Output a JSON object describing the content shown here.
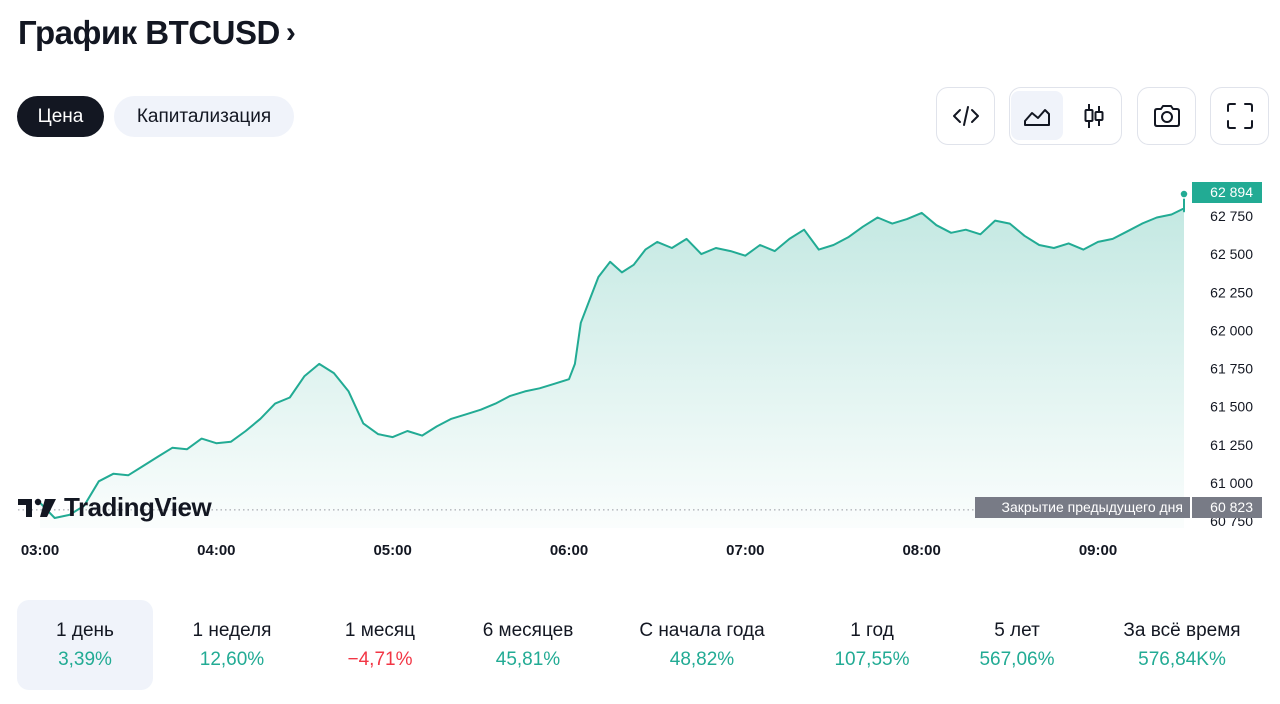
{
  "header": {
    "title": "График BTCUSD",
    "chevron": "›"
  },
  "tabs": [
    {
      "label": "Цена",
      "active": true
    },
    {
      "label": "Капитализация",
      "active": false
    }
  ],
  "toolbar": {
    "icons": [
      "embed-code-icon",
      "area-chart-icon",
      "candlestick-icon",
      "camera-icon",
      "fullscreen-icon"
    ]
  },
  "colors": {
    "accent": "#22ab94",
    "negative": "#f23645",
    "dark": "#131722",
    "muted": "#f0f3fa"
  },
  "chart_data": {
    "type": "area",
    "x_ticks": [
      "03:00",
      "04:00",
      "05:00",
      "06:00",
      "07:00",
      "08:00",
      "09:00"
    ],
    "y_ticks": [
      "62 750",
      "62 500",
      "62 250",
      "62 000",
      "61 750",
      "61 500",
      "61 250",
      "61 000",
      "60 750"
    ],
    "last_price_label": "62 894",
    "last_price": 62894,
    "prev_close_label": "Закрытие предыдущего дня",
    "prev_close_value_label": "60 823",
    "prev_close": 60823,
    "ylim": [
      60730,
      62960
    ],
    "watermark": "TradingView",
    "series": [
      {
        "points": [
          [
            "03:00",
            60870
          ],
          [
            "03:05",
            60770
          ],
          [
            "03:10",
            60790
          ],
          [
            "03:15",
            60850
          ],
          [
            "03:20",
            61010
          ],
          [
            "03:25",
            61060
          ],
          [
            "03:30",
            61050
          ],
          [
            "03:35",
            61110
          ],
          [
            "03:40",
            61170
          ],
          [
            "03:45",
            61230
          ],
          [
            "03:50",
            61220
          ],
          [
            "03:55",
            61290
          ],
          [
            "04:00",
            61260
          ],
          [
            "04:05",
            61270
          ],
          [
            "04:10",
            61340
          ],
          [
            "04:15",
            61420
          ],
          [
            "04:20",
            61520
          ],
          [
            "04:25",
            61560
          ],
          [
            "04:30",
            61700
          ],
          [
            "04:35",
            61780
          ],
          [
            "04:40",
            61720
          ],
          [
            "04:45",
            61600
          ],
          [
            "04:50",
            61390
          ],
          [
            "04:55",
            61320
          ],
          [
            "05:00",
            61300
          ],
          [
            "05:05",
            61340
          ],
          [
            "05:10",
            61310
          ],
          [
            "05:15",
            61370
          ],
          [
            "05:20",
            61420
          ],
          [
            "05:25",
            61450
          ],
          [
            "05:30",
            61480
          ],
          [
            "05:35",
            61520
          ],
          [
            "05:40",
            61570
          ],
          [
            "05:45",
            61600
          ],
          [
            "05:50",
            61620
          ],
          [
            "05:55",
            61650
          ],
          [
            "06:00",
            61680
          ],
          [
            "06:02",
            61780
          ],
          [
            "06:04",
            62050
          ],
          [
            "06:07",
            62200
          ],
          [
            "06:10",
            62350
          ],
          [
            "06:14",
            62450
          ],
          [
            "06:18",
            62380
          ],
          [
            "06:22",
            62430
          ],
          [
            "06:26",
            62530
          ],
          [
            "06:30",
            62580
          ],
          [
            "06:35",
            62540
          ],
          [
            "06:40",
            62600
          ],
          [
            "06:45",
            62500
          ],
          [
            "06:50",
            62540
          ],
          [
            "06:55",
            62520
          ],
          [
            "07:00",
            62490
          ],
          [
            "07:05",
            62560
          ],
          [
            "07:10",
            62520
          ],
          [
            "07:15",
            62600
          ],
          [
            "07:20",
            62660
          ],
          [
            "07:25",
            62530
          ],
          [
            "07:30",
            62560
          ],
          [
            "07:35",
            62610
          ],
          [
            "07:40",
            62680
          ],
          [
            "07:45",
            62740
          ],
          [
            "07:50",
            62700
          ],
          [
            "07:55",
            62730
          ],
          [
            "08:00",
            62770
          ],
          [
            "08:05",
            62690
          ],
          [
            "08:10",
            62640
          ],
          [
            "08:15",
            62660
          ],
          [
            "08:20",
            62630
          ],
          [
            "08:25",
            62720
          ],
          [
            "08:30",
            62700
          ],
          [
            "08:35",
            62620
          ],
          [
            "08:40",
            62560
          ],
          [
            "08:45",
            62540
          ],
          [
            "08:50",
            62570
          ],
          [
            "08:55",
            62530
          ],
          [
            "09:00",
            62580
          ],
          [
            "09:05",
            62600
          ],
          [
            "09:10",
            62650
          ],
          [
            "09:15",
            62700
          ],
          [
            "09:20",
            62740
          ],
          [
            "09:25",
            62760
          ],
          [
            "09:30",
            62800
          ],
          [
            "09:35",
            62780
          ],
          [
            "09:40",
            62820
          ],
          [
            "09:45",
            62840
          ],
          [
            "09:50",
            62800
          ],
          [
            "09:55",
            62860
          ],
          [
            "10:00",
            62890
          ],
          [
            "10:05",
            62820
          ],
          [
            "10:10",
            62870
          ],
          [
            "10:15",
            62900
          ],
          [
            "10:20",
            62894
          ]
        ]
      }
    ]
  },
  "periods": [
    {
      "label": "1 день",
      "value": "3,39%",
      "trend": "up",
      "active": true
    },
    {
      "label": "1 неделя",
      "value": "12,60%",
      "trend": "up",
      "active": false
    },
    {
      "label": "1 месяц",
      "value": "−4,71%",
      "trend": "down",
      "active": false
    },
    {
      "label": "6 месяцев",
      "value": "45,81%",
      "trend": "up",
      "active": false
    },
    {
      "label": "С начала года",
      "value": "48,82%",
      "trend": "up",
      "active": false
    },
    {
      "label": "1 год",
      "value": "107,55%",
      "trend": "up",
      "active": false
    },
    {
      "label": "5 лет",
      "value": "567,06%",
      "trend": "up",
      "active": false
    },
    {
      "label": "За всё время",
      "value": "576,84K%",
      "trend": "up",
      "active": false
    }
  ]
}
